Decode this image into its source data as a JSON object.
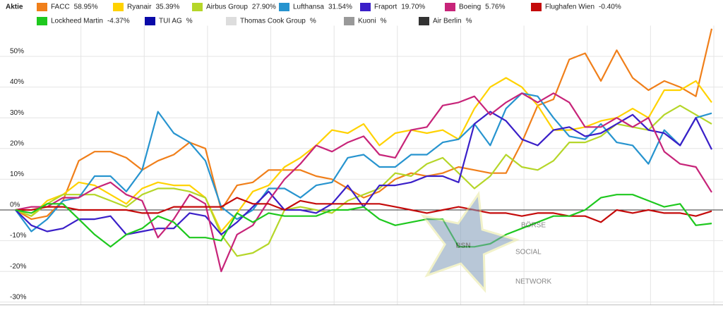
{
  "chart_data": {
    "type": "line",
    "legend_title": "Aktie",
    "categories": [
      null,
      null,
      null,
      null,
      null,
      null,
      null,
      null,
      null,
      null,
      null,
      null,
      null,
      null,
      null,
      null,
      null,
      null,
      null,
      null,
      null,
      null,
      null,
      null,
      null,
      null,
      null,
      null,
      null,
      null,
      null,
      null,
      null,
      null,
      null,
      null,
      null,
      null,
      null,
      null,
      null,
      null,
      null,
      null,
      null
    ],
    "ylim": [
      -30,
      60
    ],
    "yticks": [
      {
        "value": -30,
        "label": "-30%"
      },
      {
        "value": -20,
        "label": "-20%"
      },
      {
        "value": -10,
        "label": "-10%"
      },
      {
        "value": 0,
        "label": "0%"
      },
      {
        "value": 10,
        "label": "10%"
      },
      {
        "value": 20,
        "label": "20%"
      },
      {
        "value": 30,
        "label": "30%"
      },
      {
        "value": 40,
        "label": "40%"
      },
      {
        "value": 50,
        "label": "50%"
      }
    ],
    "grid": true,
    "series": [
      {
        "name": "FACC",
        "legend_label": "58.95%",
        "color": "#f07f1a",
        "values": [
          0,
          -3,
          -2,
          3,
          16,
          19,
          19,
          17,
          13,
          16,
          18,
          22,
          20,
          0,
          8,
          9,
          13,
          13,
          13,
          11,
          10,
          7,
          4,
          6,
          10,
          12,
          11,
          12,
          14,
          13,
          12,
          12,
          22,
          34,
          36,
          49,
          51,
          42,
          52,
          43,
          39,
          42,
          40,
          37,
          59
        ]
      },
      {
        "name": "Ryanair",
        "legend_label": "35.39%",
        "color": "#ffd200",
        "values": [
          0,
          -2,
          3,
          5,
          9,
          8,
          5,
          2,
          7,
          9,
          8,
          8,
          4,
          -7,
          -1,
          6,
          8,
          14,
          17,
          21,
          26,
          25,
          28,
          21,
          25,
          26,
          25,
          26,
          23,
          33,
          40,
          43,
          40,
          34,
          26,
          26,
          27,
          29,
          30,
          33,
          30,
          39,
          39,
          42,
          35
        ]
      },
      {
        "name": "Airbus Group",
        "legend_label": "27.90%",
        "color": "#b5d629",
        "values": [
          0,
          -2,
          2,
          5,
          5,
          5,
          3,
          1,
          5,
          7,
          7,
          6,
          4,
          -8,
          -15,
          -14,
          -11,
          0,
          1,
          0,
          -1,
          3,
          5,
          7,
          12,
          11,
          15,
          17,
          12,
          7,
          11,
          18,
          14,
          13,
          16,
          22,
          22,
          24,
          28,
          27,
          26,
          31,
          34,
          31,
          28
        ]
      },
      {
        "name": "Lufthansa",
        "legend_label": "31.54%",
        "color": "#2794cf",
        "values": [
          0,
          -7,
          -3,
          3,
          4,
          11,
          11,
          6,
          13,
          32,
          25,
          22,
          16,
          1,
          -3,
          0,
          7,
          7,
          4,
          8,
          9,
          17,
          18,
          14,
          14,
          18,
          18,
          22,
          23,
          28,
          21,
          33,
          38,
          37,
          30,
          24,
          23,
          28,
          22,
          21,
          15,
          26,
          21,
          30,
          31.5
        ]
      },
      {
        "name": "Fraport",
        "legend_label": "19.70%",
        "color": "#3a1fc8",
        "values": [
          0,
          -5,
          -7,
          -6,
          -3,
          -3,
          -2,
          -8,
          -7,
          -6,
          -6,
          -1,
          -2,
          -8,
          -4,
          1,
          6,
          0,
          0,
          -1,
          2,
          8,
          1,
          8,
          8,
          9,
          11,
          11,
          9,
          28,
          32,
          29,
          23,
          21,
          26,
          27,
          24,
          25,
          28,
          31,
          26,
          25,
          21,
          30,
          19.7
        ]
      },
      {
        "name": "Boeing",
        "legend_label": "5.76%",
        "color": "#c72479",
        "values": [
          0,
          1,
          1,
          4,
          4,
          7,
          9,
          5,
          3,
          -9,
          -3,
          5,
          2,
          -20,
          -8,
          -5,
          3,
          10,
          15,
          21,
          19,
          22,
          24,
          18,
          17,
          26,
          27,
          34,
          35,
          37,
          31,
          35,
          38,
          35,
          38,
          35,
          27,
          27,
          30,
          27,
          30,
          19,
          15,
          14,
          5.76
        ]
      },
      {
        "name": "Flughafen Wien",
        "legend_label": "-0.40%",
        "color": "#c40a0a",
        "values": [
          0,
          0,
          1,
          1,
          0,
          0,
          0,
          0,
          -1,
          -1,
          1,
          1,
          1,
          1,
          4,
          2,
          2,
          0,
          3,
          2,
          2,
          2,
          2,
          2,
          1,
          0,
          -1,
          0,
          1,
          0,
          -1,
          -1,
          -2,
          -1,
          -1,
          -2,
          -2,
          -4,
          0,
          -1,
          0,
          -1,
          -1,
          -2,
          -0.4
        ]
      },
      {
        "name": "Lockheed Martin",
        "legend_label": "-4.37%",
        "color": "#1ec81e",
        "values": [
          0,
          -1,
          2,
          2,
          -3,
          -8,
          -12,
          -8,
          -6,
          -2,
          -4,
          -9,
          -9,
          -10,
          -1,
          -4,
          -1,
          -2,
          -2,
          -2,
          0,
          0,
          1,
          -3,
          -5,
          -4,
          -3,
          -3,
          -12,
          -12,
          -11,
          -8,
          -6,
          -4,
          -2,
          -2,
          0,
          4,
          5,
          5,
          3,
          1,
          2,
          -5,
          -4.37
        ]
      },
      {
        "name": "TUI AG",
        "legend_label": "%",
        "color": "#0a0aa8"
      },
      {
        "name": "Thomas Cook Group",
        "legend_label": "%",
        "color": "#dddddd"
      },
      {
        "name": "Kuoni",
        "legend_label": "%",
        "color": "#999999"
      },
      {
        "name": "Air Berlin",
        "legend_label": "%",
        "color": "#333333"
      }
    ],
    "watermark": {
      "logo": "BSN",
      "lines": [
        "BÖRSE",
        "SOCIAL",
        "NETWORK"
      ]
    }
  }
}
